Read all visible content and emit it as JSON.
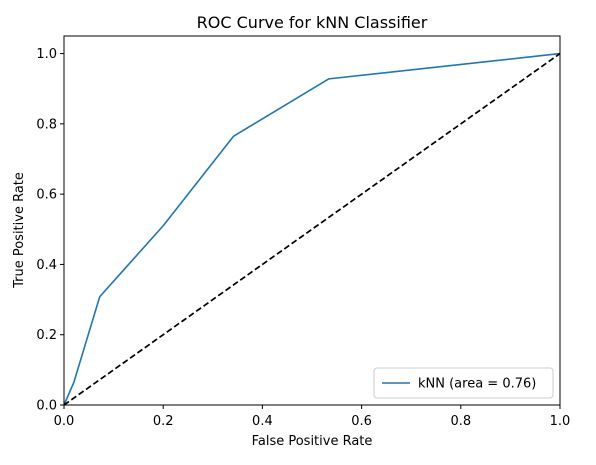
{
  "chart_data": {
    "type": "line",
    "title": "ROC Curve for kNN Classifier",
    "xlabel": "False Positive Rate",
    "ylabel": "True Positive Rate",
    "xlim": [
      0.0,
      1.0
    ],
    "ylim": [
      0.0,
      1.05
    ],
    "xticks": [
      "0.0",
      "0.2",
      "0.4",
      "0.6",
      "0.8",
      "1.0"
    ],
    "yticks": [
      "0.0",
      "0.2",
      "0.4",
      "0.6",
      "0.8",
      "1.0"
    ],
    "grid": false,
    "legend_placement": "lower-right",
    "series": [
      {
        "name": "kNN (area = 0.76)",
        "color": "#1f77b4",
        "style": "solid",
        "x": [
          0.0,
          0.02,
          0.072,
          0.2,
          0.342,
          0.534,
          1.0
        ],
        "y": [
          0.0,
          0.065,
          0.308,
          0.51,
          0.765,
          0.928,
          1.0
        ]
      },
      {
        "color": "#000000",
        "style": "dashed",
        "x": [
          0.0,
          1.0
        ],
        "y": [
          0.0,
          1.0
        ]
      }
    ]
  }
}
